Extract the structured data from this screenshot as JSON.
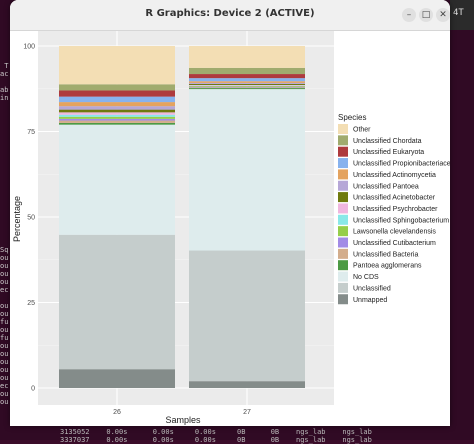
{
  "window": {
    "title": "R Graphics: Device 2 (ACTIVE)",
    "minimize_icon": "minimize-icon",
    "maximize_icon": "maximize-icon",
    "close_icon": "close-icon"
  },
  "terminal": {
    "left_lines": [
      "",
      "",
      "",
      "",
      "",
      "",
      "",
      " T",
      "ac",
      "",
      "ab",
      "in",
      "",
      "",
      "",
      "",
      "",
      "",
      "",
      "",
      "",
      "",
      "",
      "",
      "",
      "",
      "",
      "",
      "",
      "",
      "Sq",
      "ou",
      "ou",
      "ou",
      "ou",
      "ec",
      "",
      "ou",
      "ou",
      "fu",
      "ou",
      "fu",
      "ou",
      "ou",
      "ou",
      "ou",
      "ou",
      "ec",
      "ou",
      "ou"
    ],
    "right_label": "4T",
    "bottom_line1": "3135052    0.00s      0.00s     0.00s     0B      0B    ngs_lab    ngs_lab",
    "bottom_line2": "3337037    0.00s      0.00s     0.00s     0B      0B    ngs_lab    ngs_lab"
  },
  "chart_data": {
    "type": "bar",
    "stacked": true,
    "categories": [
      "26",
      "27"
    ],
    "xlabel": "Samples",
    "ylabel": "Percentage",
    "ylim": [
      0,
      100
    ],
    "yticks": [
      0,
      25,
      50,
      75,
      100
    ],
    "grid": true,
    "legend_position": "right",
    "legend_title": "Species",
    "series": [
      {
        "name": "Unmapped",
        "color": "#848c8a",
        "values": [
          5.5,
          2.0
        ]
      },
      {
        "name": "Unclassified",
        "color": "#c5cdcc",
        "values": [
          39.3,
          38.2
        ]
      },
      {
        "name": "No CDS",
        "color": "#deeced",
        "values": [
          32.2,
          47.2
        ]
      },
      {
        "name": "Pantoea agglomerans",
        "color": "#4c9a44",
        "values": [
          0.5,
          0.3
        ]
      },
      {
        "name": "Unclassified Bacteria",
        "color": "#d3ad8c",
        "values": [
          0.7,
          0.2
        ]
      },
      {
        "name": "Unclassified Cutibacterium",
        "color": "#a28be6",
        "values": [
          0.5,
          0.2
        ]
      },
      {
        "name": "Lawsonella clevelandensis",
        "color": "#96ce4a",
        "values": [
          0.6,
          0.2
        ]
      },
      {
        "name": "Unclassified Sphingobacterium",
        "color": "#8ae8e8",
        "values": [
          0.6,
          0.1
        ]
      },
      {
        "name": "Unclassified Psychrobacter",
        "color": "#f0b7df",
        "values": [
          0.7,
          0.2
        ]
      },
      {
        "name": "Unclassified Acinetobacter",
        "color": "#6f7a0e",
        "values": [
          0.8,
          0.3
        ]
      },
      {
        "name": "Unclassified Pantoea",
        "color": "#b6a7d7",
        "values": [
          1.0,
          0.3
        ]
      },
      {
        "name": "Unclassified Actinomycetia",
        "color": "#e4a35f",
        "values": [
          1.2,
          0.5
        ]
      },
      {
        "name": "Unclassified Propionibacteriaceae",
        "color": "#87b2ee",
        "values": [
          1.6,
          0.9
        ]
      },
      {
        "name": "Unclassified Eukaryota",
        "color": "#ae3a3d",
        "values": [
          1.8,
          1.2
        ]
      },
      {
        "name": "Unclassified Chordata",
        "color": "#a0ab6e",
        "values": [
          1.8,
          1.8
        ]
      },
      {
        "name": "Other",
        "color": "#f3deb4",
        "values": [
          11.2,
          6.4
        ]
      }
    ]
  }
}
